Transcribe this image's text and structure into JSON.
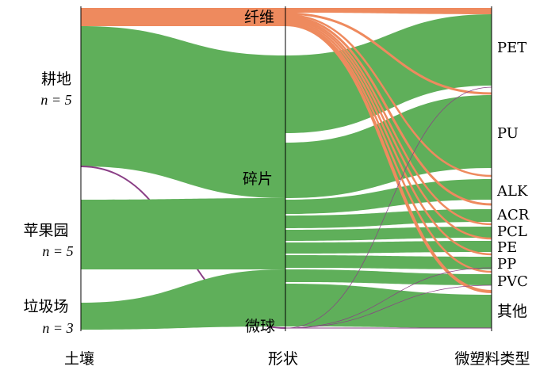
{
  "axes": {
    "soil": "土壤",
    "shape": "形状",
    "plastic": "微塑料类型"
  },
  "soil_nodes": [
    {
      "name": "耕地",
      "n_label": "n = 5"
    },
    {
      "name": "苹果园",
      "n_label": "n = 5"
    },
    {
      "name": "垃圾场",
      "n_label": "n = 3"
    }
  ],
  "shape_nodes": [
    "纤维",
    "碎片",
    "微球"
  ],
  "plastic_nodes": [
    "PET",
    "PU",
    "ALK",
    "ACR",
    "PCL",
    "PE",
    "PP",
    "PVC",
    "其他"
  ],
  "colors": {
    "fiber": "#EE8A5E",
    "fragment": "#5FAF5A",
    "microsphere": "#8A3F86",
    "axis": "#000000"
  }
}
